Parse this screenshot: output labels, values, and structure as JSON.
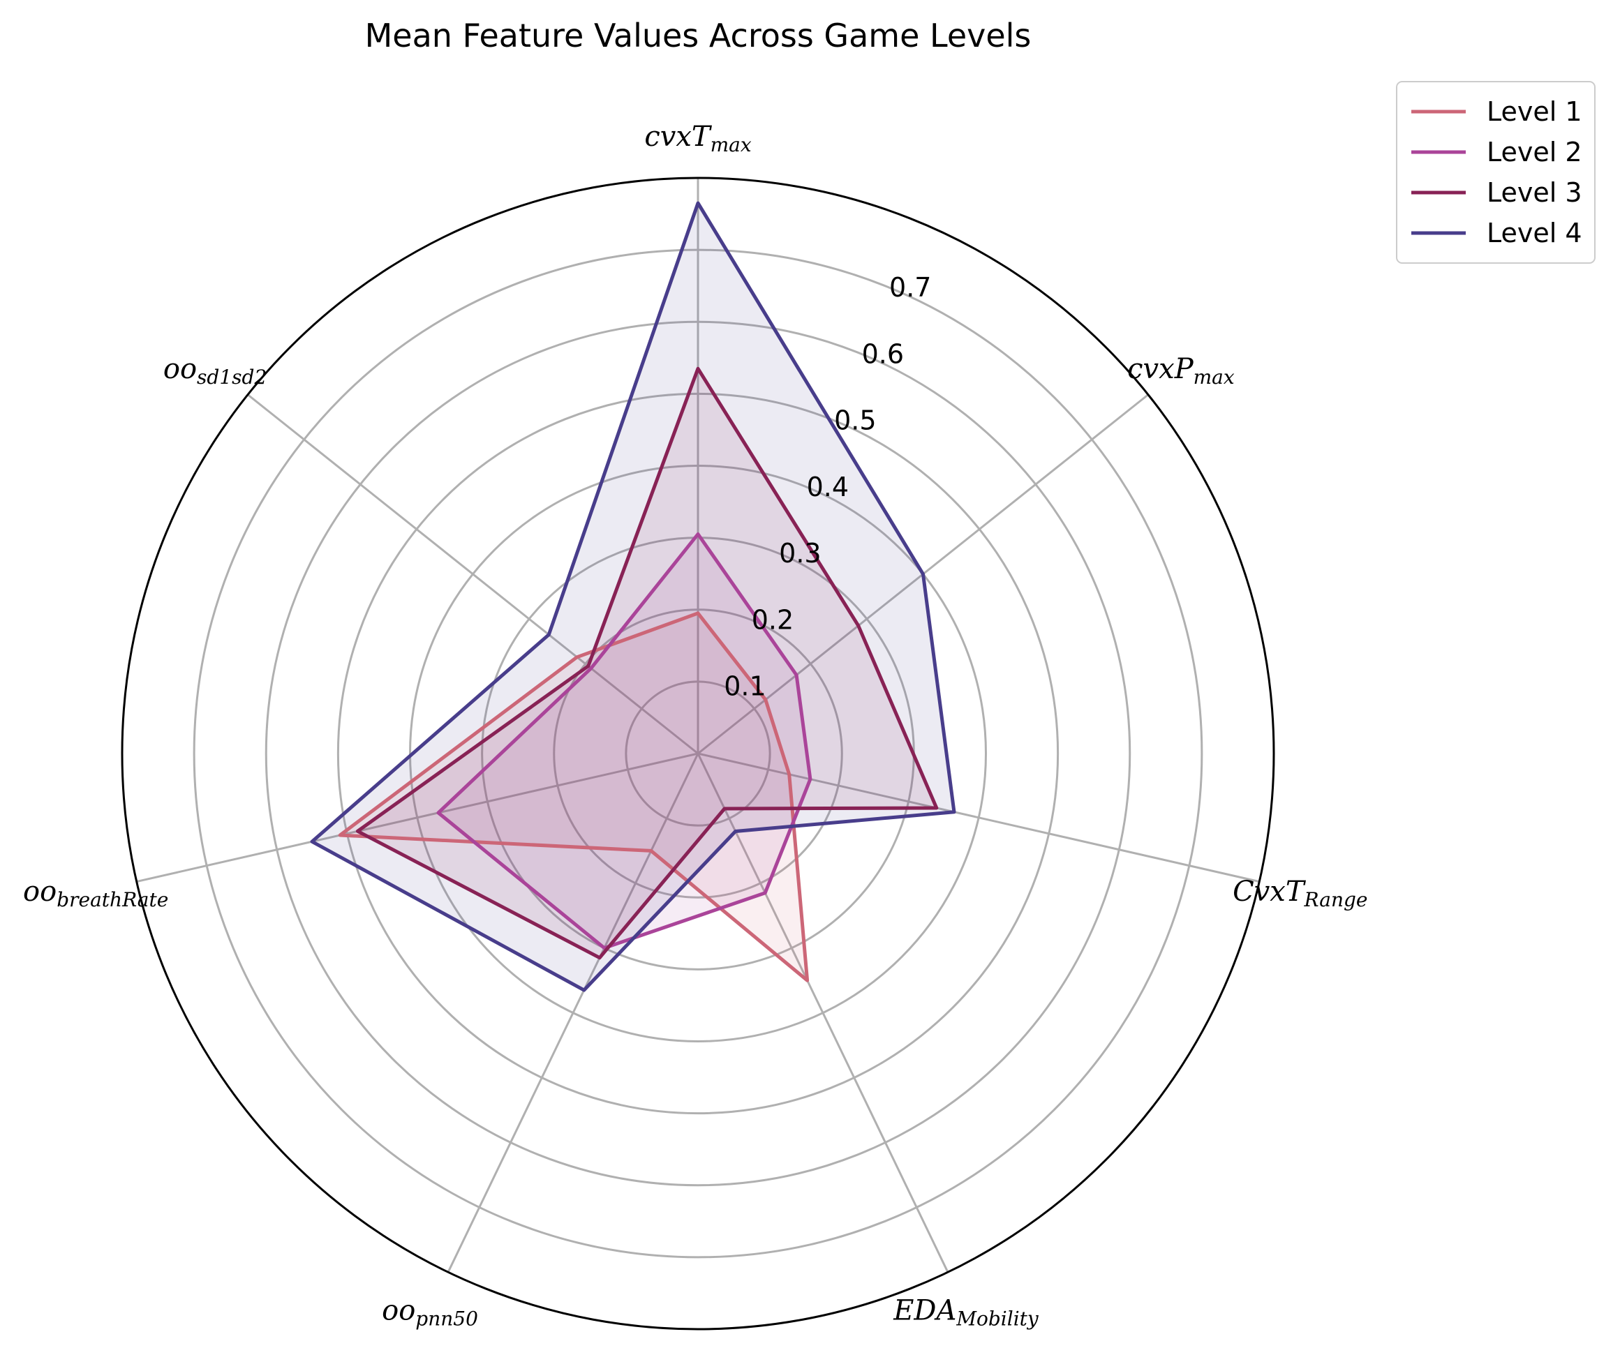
{
  "chart_data": {
    "type": "radar",
    "title": "Mean Feature Values Across Game Levels",
    "axes": [
      {
        "base": "cvxT",
        "sub": "max"
      },
      {
        "base": "cvxP",
        "sub": "max"
      },
      {
        "base": "CvxT",
        "sub": "Range"
      },
      {
        "base": "EDA",
        "sub": "Mobility"
      },
      {
        "base": "oo",
        "sub": "pnn50"
      },
      {
        "base": "oo",
        "sub": "breathRate"
      },
      {
        "base": "oo",
        "sub": "sd1sd2"
      }
    ],
    "rlim": [
      0,
      0.8
    ],
    "rticks": [
      0.1,
      0.2,
      0.3,
      0.4,
      0.5,
      0.6,
      0.7
    ],
    "rtick_labels": [
      "0.1",
      "0.2",
      "0.3",
      "0.4",
      "0.5",
      "0.6",
      "0.7"
    ],
    "series": [
      {
        "name": "Level 1",
        "color": "#cc6677",
        "values": [
          0.195,
          0.12,
          0.13,
          0.35,
          0.15,
          0.51,
          0.215
        ]
      },
      {
        "name": "Level 2",
        "color": "#aa4499",
        "values": [
          0.305,
          0.175,
          0.16,
          0.215,
          0.3,
          0.37,
          0.19
        ]
      },
      {
        "name": "Level 3",
        "color": "#882255",
        "values": [
          0.535,
          0.285,
          0.34,
          0.085,
          0.315,
          0.485,
          0.195
        ]
      },
      {
        "name": "Level 4",
        "color": "#483d8b",
        "values": [
          0.765,
          0.4,
          0.365,
          0.12,
          0.365,
          0.55,
          0.265
        ]
      }
    ],
    "grid": true,
    "legend": "top-right outside"
  }
}
